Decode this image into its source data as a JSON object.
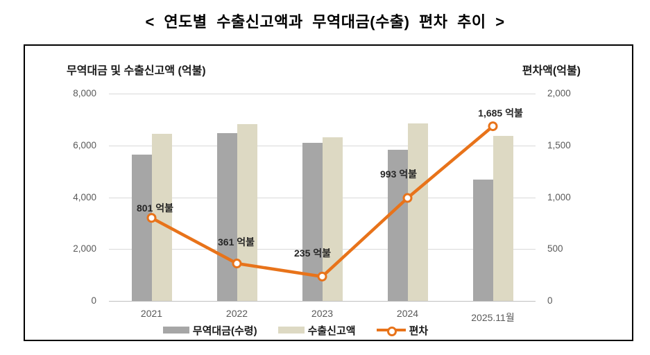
{
  "page_title": "< 연도별 수출신고액과 무역대금(수출) 편차 추이 >",
  "chart": {
    "left_axis_title": "무역대금 및 수출신고액 (억불)",
    "right_axis_title": "편차액(억불)",
    "left_tick_labels": [
      "8,000",
      "6,000",
      "4,000",
      "2,000",
      "0"
    ],
    "right_tick_labels": [
      "2,000",
      "1,500",
      "1,000",
      "500",
      "0"
    ]
  },
  "chart_data": {
    "type": "bar",
    "subtype": "grouped-bars-with-line",
    "title": "연도별 수출신고액과 무역대금(수출) 편차 추이",
    "categories": [
      "2021",
      "2022",
      "2023",
      "2024",
      "2025.11월"
    ],
    "series": [
      {
        "name": "무역대금(수령)",
        "type": "bar",
        "axis": "left",
        "color": "#a6a6a6",
        "values": [
          5643,
          6475,
          6092,
          5845,
          4695
        ]
      },
      {
        "name": "수출신고액",
        "type": "bar",
        "axis": "left",
        "color": "#ddd9c3",
        "values": [
          6444,
          6836,
          6327,
          6838,
          6380
        ]
      },
      {
        "name": "편차",
        "type": "line",
        "axis": "right",
        "color": "#e8731a",
        "values": [
          801,
          361,
          235,
          993,
          1685
        ],
        "point_labels": [
          "801 억불",
          "361 억불",
          "235 억불",
          "993 억불",
          "1,685 억불"
        ]
      }
    ],
    "left_axis": {
      "label": "무역대금 및 수출신고액 (억불)",
      "min": 0,
      "max": 8000,
      "step": 2000
    },
    "right_axis": {
      "label": "편차액(억불)",
      "min": 0,
      "max": 2000,
      "step": 500
    },
    "grid": true,
    "legend_position": "bottom"
  },
  "colors": {
    "bar_gray": "#a6a6a6",
    "bar_beige": "#ddd9c3",
    "line_orange": "#e8731a",
    "gridline": "#d9d9d9",
    "axis_text": "#595959"
  }
}
